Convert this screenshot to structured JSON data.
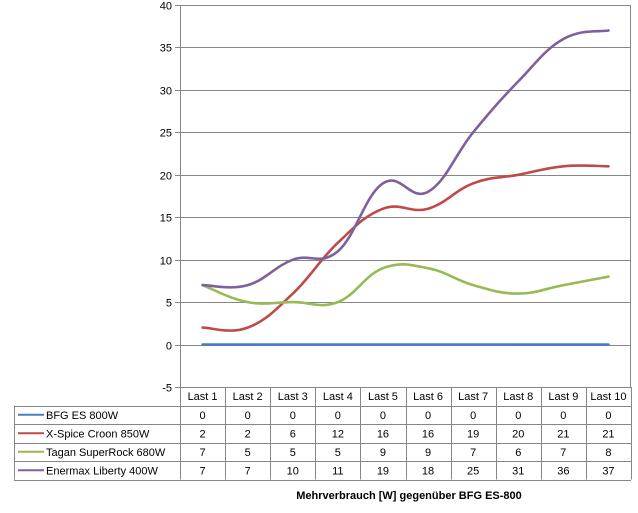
{
  "chart_data": {
    "type": "line",
    "title": "",
    "xlabel": "Mehrverbrauch [W] gegenüber BFG ES-800",
    "ylabel": "",
    "ylim": [
      -5,
      40
    ],
    "yticks": [
      "-5",
      "0",
      "5",
      "10",
      "15",
      "20",
      "25",
      "30",
      "35",
      "40"
    ],
    "ytick_values": [
      -5,
      0,
      5,
      10,
      15,
      20,
      25,
      30,
      35,
      40
    ],
    "grid": true,
    "legend": "data-table-left",
    "categories": [
      "Last 1",
      "Last 2",
      "Last 3",
      "Last 4",
      "Last 5",
      "Last 6",
      "Last 7",
      "Last 8",
      "Last 9",
      "Last 10"
    ],
    "series": [
      {
        "name": "BFG ES 800W",
        "color": "#4a7ebb",
        "values": [
          0,
          0,
          0,
          0,
          0,
          0,
          0,
          0,
          0,
          0
        ]
      },
      {
        "name": "X-Spice Croon 850W",
        "color": "#be4b48",
        "values": [
          2,
          2,
          6,
          12,
          16,
          16,
          19,
          20,
          21,
          21
        ]
      },
      {
        "name": "Tagan SuperRock 680W",
        "color": "#98b954",
        "values": [
          7,
          5,
          5,
          5,
          9,
          9,
          7,
          6,
          7,
          8
        ]
      },
      {
        "name": "Enermax Liberty 400W",
        "color": "#7d60a0",
        "values": [
          7,
          7,
          10,
          11,
          19,
          18,
          25,
          31,
          36,
          37
        ]
      }
    ]
  }
}
